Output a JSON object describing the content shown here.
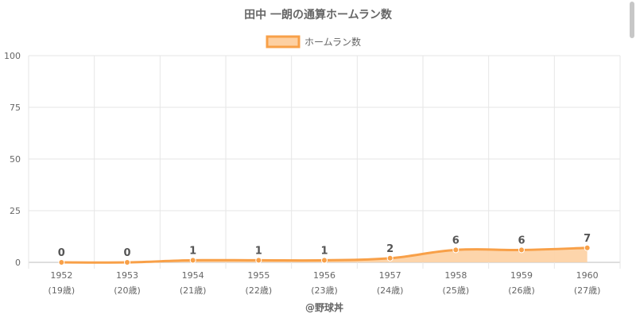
{
  "chart_data": {
    "type": "area",
    "title": "田中 一朗の通算ホームラン数",
    "legend_position": "top",
    "categories": [
      "1952",
      "1953",
      "1954",
      "1955",
      "1956",
      "1957",
      "1958",
      "1959",
      "1960"
    ],
    "category_sublabels": [
      "(19歳)",
      "(20歳)",
      "(21歳)",
      "(22歳)",
      "(23歳)",
      "(24歳)",
      "(25歳)",
      "(26歳)",
      "(27歳)"
    ],
    "series": [
      {
        "name": "ホームラン数",
        "values": [
          0,
          0,
          1,
          1,
          1,
          2,
          6,
          6,
          7
        ]
      }
    ],
    "ylim": [
      0,
      100
    ],
    "yticks": [
      0,
      25,
      50,
      75,
      100
    ],
    "grid": true,
    "colors": {
      "line": "#f8a048",
      "fill": "#fdd0a2",
      "grid": "#e6e6e6",
      "text": "#666666",
      "label": "#555555"
    },
    "footer": "@野球丼"
  }
}
